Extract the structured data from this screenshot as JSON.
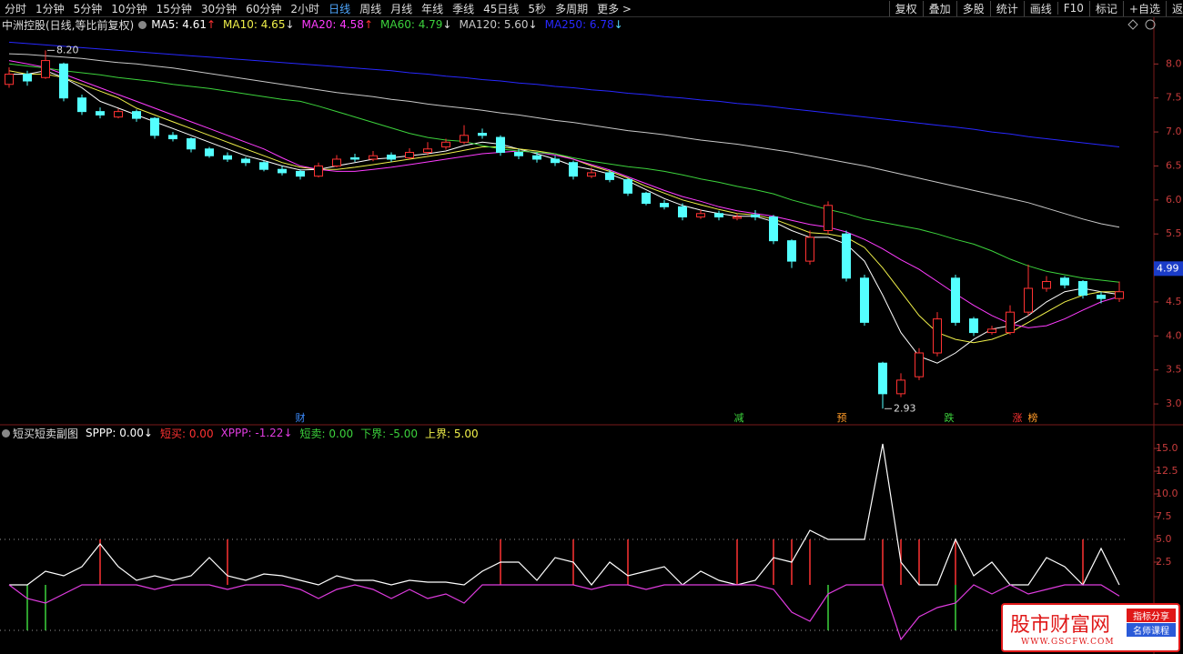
{
  "toolbar": {
    "periods": [
      "分时",
      "1分钟",
      "5分钟",
      "10分钟",
      "15分钟",
      "30分钟",
      "60分钟",
      "2小时",
      "日线",
      "周线",
      "月线",
      "年线",
      "季线",
      "45日线",
      "5秒",
      "多周期",
      "更多 >"
    ],
    "active": "日线",
    "tools": [
      "复权",
      "叠加",
      "多股",
      "统计",
      "画线",
      "F10",
      "标记",
      "+自选",
      "返回"
    ]
  },
  "chart_data": [
    {
      "type": "candlestick",
      "title": "中洲控股(日线,等比前复权)",
      "up_color": "#ff3232",
      "down_color": "#54ffff",
      "open": [
        7.7,
        7.85,
        7.8,
        8.0,
        7.5,
        7.3,
        7.22,
        7.3,
        7.2,
        6.95,
        6.9,
        6.75,
        6.65,
        6.6,
        6.55,
        6.45,
        6.42,
        6.35,
        6.5,
        6.62,
        6.6,
        6.66,
        6.62,
        6.7,
        6.78,
        6.85,
        6.98,
        6.92,
        6.7,
        6.65,
        6.6,
        6.55,
        6.35,
        6.4,
        6.3,
        6.1,
        5.95,
        5.9,
        5.75,
        5.8,
        5.73,
        5.78,
        5.75,
        5.4,
        5.1,
        5.55,
        5.5,
        4.85,
        3.6,
        3.15,
        3.4,
        3.75,
        4.85,
        4.25,
        4.05,
        4.05,
        4.35,
        4.7,
        4.85,
        4.8,
        4.6,
        4.55
      ],
      "close": [
        7.85,
        7.75,
        8.05,
        7.5,
        7.3,
        7.25,
        7.3,
        7.2,
        6.95,
        6.9,
        6.75,
        6.65,
        6.6,
        6.55,
        6.45,
        6.4,
        6.35,
        6.5,
        6.6,
        6.6,
        6.65,
        6.6,
        6.7,
        6.75,
        6.85,
        6.95,
        6.95,
        6.7,
        6.65,
        6.6,
        6.55,
        6.35,
        6.4,
        6.3,
        6.1,
        5.95,
        5.9,
        5.75,
        5.8,
        5.75,
        5.75,
        5.75,
        5.4,
        5.1,
        5.45,
        5.92,
        4.85,
        4.2,
        3.15,
        3.35,
        3.75,
        4.25,
        4.2,
        4.05,
        4.1,
        4.35,
        4.7,
        4.8,
        4.75,
        4.6,
        4.55,
        4.65
      ],
      "high": [
        7.95,
        7.9,
        8.2,
        8.02,
        7.55,
        7.36,
        7.34,
        7.33,
        7.22,
        7.0,
        6.92,
        6.78,
        6.7,
        6.63,
        6.58,
        6.5,
        6.45,
        6.55,
        6.66,
        6.68,
        6.72,
        6.7,
        6.76,
        6.85,
        6.9,
        7.1,
        7.05,
        6.95,
        6.75,
        6.7,
        6.65,
        6.58,
        6.48,
        6.44,
        6.32,
        6.12,
        6.0,
        5.95,
        5.86,
        5.84,
        5.8,
        5.85,
        5.78,
        5.42,
        5.55,
        5.98,
        5.55,
        4.9,
        3.62,
        3.45,
        3.82,
        4.35,
        4.9,
        4.28,
        4.15,
        4.45,
        5.05,
        4.88,
        4.88,
        4.82,
        4.65,
        4.8
      ],
      "low": [
        7.65,
        7.68,
        7.78,
        7.45,
        7.25,
        7.2,
        7.2,
        7.15,
        6.9,
        6.86,
        6.7,
        6.62,
        6.56,
        6.5,
        6.42,
        6.36,
        6.3,
        6.33,
        6.48,
        6.56,
        6.57,
        6.56,
        6.6,
        6.66,
        6.74,
        6.82,
        6.9,
        6.65,
        6.6,
        6.55,
        6.5,
        6.3,
        6.32,
        6.26,
        6.06,
        5.92,
        5.86,
        5.7,
        5.72,
        5.7,
        5.7,
        5.7,
        5.35,
        5.0,
        5.05,
        5.5,
        4.8,
        4.15,
        2.93,
        3.1,
        3.35,
        3.7,
        4.15,
        4.0,
        4.02,
        4.02,
        4.3,
        4.65,
        4.7,
        4.55,
        4.48,
        4.5
      ],
      "series": [
        {
          "name": "MA5",
          "color": "#ffffff",
          "trend": "↑",
          "trend_color": "#ff3232",
          "last_label": "4.61",
          "values": [
            7.85,
            7.85,
            7.9,
            7.8,
            7.65,
            7.45,
            7.35,
            7.25,
            7.15,
            7.05,
            6.95,
            6.85,
            6.75,
            6.65,
            6.58,
            6.5,
            6.44,
            6.45,
            6.5,
            6.55,
            6.6,
            6.62,
            6.65,
            6.68,
            6.72,
            6.8,
            6.85,
            6.82,
            6.75,
            6.68,
            6.6,
            6.5,
            6.45,
            6.38,
            6.28,
            6.15,
            6.02,
            5.92,
            5.85,
            5.8,
            5.76,
            5.76,
            5.68,
            5.55,
            5.45,
            5.45,
            5.35,
            5.1,
            4.6,
            4.05,
            3.7,
            3.6,
            3.75,
            3.95,
            4.1,
            4.15,
            4.3,
            4.5,
            4.65,
            4.7,
            4.65,
            4.61
          ]
        },
        {
          "name": "MA10",
          "color": "#f0f04a",
          "trend": "↓",
          "trend_color": "#dddddd",
          "last_label": "4.65",
          "values": [
            7.9,
            7.85,
            7.85,
            7.8,
            7.7,
            7.6,
            7.5,
            7.35,
            7.25,
            7.15,
            7.05,
            6.95,
            6.85,
            6.75,
            6.65,
            6.55,
            6.48,
            6.45,
            6.45,
            6.48,
            6.52,
            6.56,
            6.6,
            6.64,
            6.68,
            6.73,
            6.78,
            6.78,
            6.75,
            6.72,
            6.68,
            6.6,
            6.5,
            6.42,
            6.32,
            6.2,
            6.1,
            6.0,
            5.93,
            5.86,
            5.8,
            5.78,
            5.72,
            5.62,
            5.52,
            5.5,
            5.45,
            5.3,
            5.0,
            4.65,
            4.3,
            4.05,
            3.95,
            3.9,
            3.95,
            4.05,
            4.2,
            4.35,
            4.5,
            4.6,
            4.65,
            4.65
          ]
        },
        {
          "name": "MA20",
          "color": "#ff3cff",
          "trend": "↑",
          "trend_color": "#ff3232",
          "last_label": "4.58",
          "values": [
            8.05,
            8.0,
            7.95,
            7.85,
            7.75,
            7.65,
            7.55,
            7.45,
            7.35,
            7.25,
            7.15,
            7.05,
            6.95,
            6.85,
            6.75,
            6.62,
            6.5,
            6.45,
            6.42,
            6.42,
            6.45,
            6.48,
            6.52,
            6.56,
            6.6,
            6.64,
            6.68,
            6.7,
            6.72,
            6.7,
            6.66,
            6.6,
            6.52,
            6.44,
            6.34,
            6.24,
            6.14,
            6.05,
            5.98,
            5.9,
            5.84,
            5.8,
            5.76,
            5.7,
            5.64,
            5.6,
            5.53,
            5.42,
            5.28,
            5.12,
            4.98,
            4.8,
            4.62,
            4.45,
            4.3,
            4.18,
            4.12,
            4.15,
            4.25,
            4.38,
            4.5,
            4.58
          ]
        },
        {
          "name": "MA60",
          "color": "#3cd23c",
          "trend": "↓",
          "trend_color": "#dddddd",
          "last_label": "4.79",
          "values": [
            8.0,
            7.97,
            7.94,
            7.9,
            7.87,
            7.84,
            7.8,
            7.77,
            7.74,
            7.7,
            7.67,
            7.64,
            7.6,
            7.56,
            7.52,
            7.48,
            7.45,
            7.38,
            7.3,
            7.22,
            7.14,
            7.06,
            6.98,
            6.92,
            6.88,
            6.86,
            6.8,
            6.75,
            6.72,
            6.7,
            6.68,
            6.62,
            6.57,
            6.53,
            6.49,
            6.46,
            6.42,
            6.37,
            6.31,
            6.26,
            6.2,
            6.15,
            6.09,
            6.0,
            5.93,
            5.86,
            5.8,
            5.72,
            5.67,
            5.62,
            5.57,
            5.5,
            5.42,
            5.35,
            5.25,
            5.13,
            5.03,
            4.95,
            4.9,
            4.85,
            4.82,
            4.79
          ]
        },
        {
          "name": "MA120",
          "color": "#c8c8c8",
          "trend": "↓",
          "trend_color": "#dddddd",
          "last_label": "5.60",
          "values": [
            8.15,
            8.14,
            8.12,
            8.1,
            8.08,
            8.05,
            8.02,
            8.0,
            7.97,
            7.94,
            7.9,
            7.86,
            7.82,
            7.78,
            7.74,
            7.7,
            7.66,
            7.62,
            7.58,
            7.55,
            7.52,
            7.48,
            7.45,
            7.41,
            7.38,
            7.35,
            7.32,
            7.28,
            7.25,
            7.21,
            7.17,
            7.14,
            7.1,
            7.06,
            7.02,
            6.99,
            6.96,
            6.92,
            6.88,
            6.85,
            6.82,
            6.78,
            6.74,
            6.7,
            6.65,
            6.6,
            6.55,
            6.5,
            6.44,
            6.38,
            6.32,
            6.26,
            6.2,
            6.14,
            6.08,
            6.02,
            5.96,
            5.88,
            5.8,
            5.72,
            5.65,
            5.6
          ]
        },
        {
          "name": "MA250",
          "color": "#2828ff",
          "trend": "↓",
          "trend_color": "#54d8ff",
          "last_label": "6.78",
          "values": [
            8.32,
            8.3,
            8.28,
            8.26,
            8.24,
            8.22,
            8.2,
            8.18,
            8.16,
            8.14,
            8.12,
            8.1,
            8.08,
            8.06,
            8.04,
            8.02,
            8.0,
            7.98,
            7.96,
            7.94,
            7.92,
            7.9,
            7.87,
            7.85,
            7.82,
            7.8,
            7.77,
            7.75,
            7.72,
            7.7,
            7.67,
            7.65,
            7.62,
            7.6,
            7.57,
            7.55,
            7.52,
            7.5,
            7.47,
            7.45,
            7.42,
            7.4,
            7.37,
            7.34,
            7.31,
            7.28,
            7.25,
            7.22,
            7.19,
            7.16,
            7.13,
            7.1,
            7.07,
            7.04,
            7.0,
            6.97,
            6.93,
            6.9,
            6.87,
            6.84,
            6.81,
            6.78
          ]
        }
      ],
      "ylim": [
        2.72,
        8.7
      ],
      "yticks": [
        {
          "value": 8,
          "label": "8.0"
        },
        7.5,
        {
          "value": 7,
          "label": "7.0"
        },
        6.5,
        {
          "value": 6,
          "label": "6.0"
        },
        5.5,
        {
          "value": 5,
          "label": "5.0"
        },
        4.5,
        {
          "value": 4,
          "label": "4.0"
        },
        3.5,
        {
          "value": 3,
          "label": "3.0"
        }
      ],
      "annotations": [
        {
          "value": 8.2,
          "label": "8.20"
        },
        {
          "value": 2.93,
          "label": "2.93"
        }
      ],
      "current_price": 4.99,
      "events": [
        {
          "label": "财",
          "color": "#3c8cff"
        },
        {
          "label": "减",
          "color": "#3cd23c"
        },
        {
          "label": "预",
          "color": "#ff9a28"
        },
        {
          "label": "跌",
          "color": "#3cd23c"
        },
        {
          "label": "涨",
          "color": "#ff3232"
        },
        {
          "label": "榜",
          "color": "#ff9a28"
        }
      ]
    },
    {
      "type": "line",
      "title": "短买短卖副图",
      "series": [
        {
          "name": "SPPP",
          "color": "#ffffff",
          "kind": "line",
          "trend": "↓",
          "last_label": "0.00",
          "values": [
            0,
            0,
            1.5,
            1,
            2,
            4.5,
            2,
            0.5,
            1,
            0.5,
            1,
            3,
            1,
            0.5,
            1.2,
            1,
            0.5,
            0,
            1,
            0.5,
            0.5,
            0,
            0.5,
            0.3,
            0.3,
            0,
            1.5,
            2.5,
            2.5,
            0.5,
            3,
            2.5,
            0,
            2.5,
            1,
            1.5,
            2,
            0,
            1.5,
            0.5,
            0,
            0.5,
            3,
            2.5,
            6,
            5,
            5,
            5,
            15.5,
            2.5,
            0,
            0,
            5,
            1,
            2.5,
            0,
            0,
            3,
            2,
            0,
            4,
            0
          ]
        },
        {
          "name": "短买",
          "color": "#ff3232",
          "kind": "bar",
          "trend": "",
          "last_label": "0.00",
          "values": [
            0,
            0,
            0,
            0,
            0,
            5,
            0,
            0,
            0,
            0,
            0,
            0,
            5,
            0,
            0,
            0,
            0,
            0,
            0,
            0,
            0,
            0,
            0,
            0,
            0,
            0,
            0,
            5,
            0,
            0,
            0,
            5,
            0,
            0,
            5,
            0,
            0,
            0,
            0,
            0,
            5,
            0,
            5,
            5,
            5,
            0,
            0,
            0,
            5,
            5,
            5,
            0,
            5,
            0,
            0,
            0,
            0,
            0,
            0,
            5,
            0,
            0
          ]
        },
        {
          "name": "XPPP",
          "color": "#e03ce0",
          "kind": "line",
          "trend": "↓",
          "last_label": "-1.22",
          "values": [
            0,
            -1.5,
            -2,
            -1,
            0,
            0,
            0,
            0,
            -0.5,
            0,
            0,
            0,
            -0.5,
            0,
            0,
            0,
            -0.5,
            -1.5,
            -0.5,
            0,
            -0.5,
            -1.5,
            -0.5,
            -1.5,
            -1,
            -2,
            0,
            0,
            0,
            0,
            0,
            0,
            -0.5,
            0,
            0,
            -0.5,
            0,
            0,
            0,
            0,
            0,
            0,
            -0.5,
            -3,
            -4,
            -1,
            0,
            0,
            0,
            -6,
            -3.5,
            -2.5,
            -2,
            0,
            -1,
            0,
            -1,
            -0.5,
            0,
            0,
            0,
            -1.22
          ]
        },
        {
          "name": "短卖",
          "color": "#3cd23c",
          "kind": "bar",
          "trend": "",
          "last_label": "0.00",
          "values": [
            0,
            -5,
            -5,
            0,
            0,
            0,
            0,
            0,
            0,
            0,
            0,
            0,
            0,
            0,
            0,
            0,
            0,
            0,
            0,
            0,
            0,
            0,
            0,
            0,
            0,
            0,
            0,
            0,
            0,
            0,
            0,
            0,
            0,
            0,
            0,
            0,
            0,
            0,
            0,
            0,
            0,
            0,
            0,
            0,
            0,
            -5,
            0,
            0,
            0,
            0,
            0,
            0,
            -5,
            0,
            0,
            0,
            0,
            0,
            0,
            0,
            0,
            0
          ]
        }
      ],
      "bounds": [
        {
          "name": "下界",
          "value": -5,
          "label": "-5.00",
          "color": "#3cd23c"
        },
        {
          "name": "上界",
          "value": 5,
          "label": "5.00",
          "color": "#f0f04a"
        }
      ],
      "ylim": [
        -7.6,
        17.6
      ],
      "yticks": [
        {
          "value": 15,
          "label": "15.0"
        },
        12.5,
        {
          "value": 10,
          "label": "10.0"
        },
        7.5,
        {
          "value": 5,
          "label": "5.0"
        },
        2.5
      ]
    }
  ],
  "watermark": {
    "name": "股市财富网",
    "tag1": "指标分享",
    "tag2": "名师课程",
    "url": "WWW.GSCFW.COM"
  }
}
